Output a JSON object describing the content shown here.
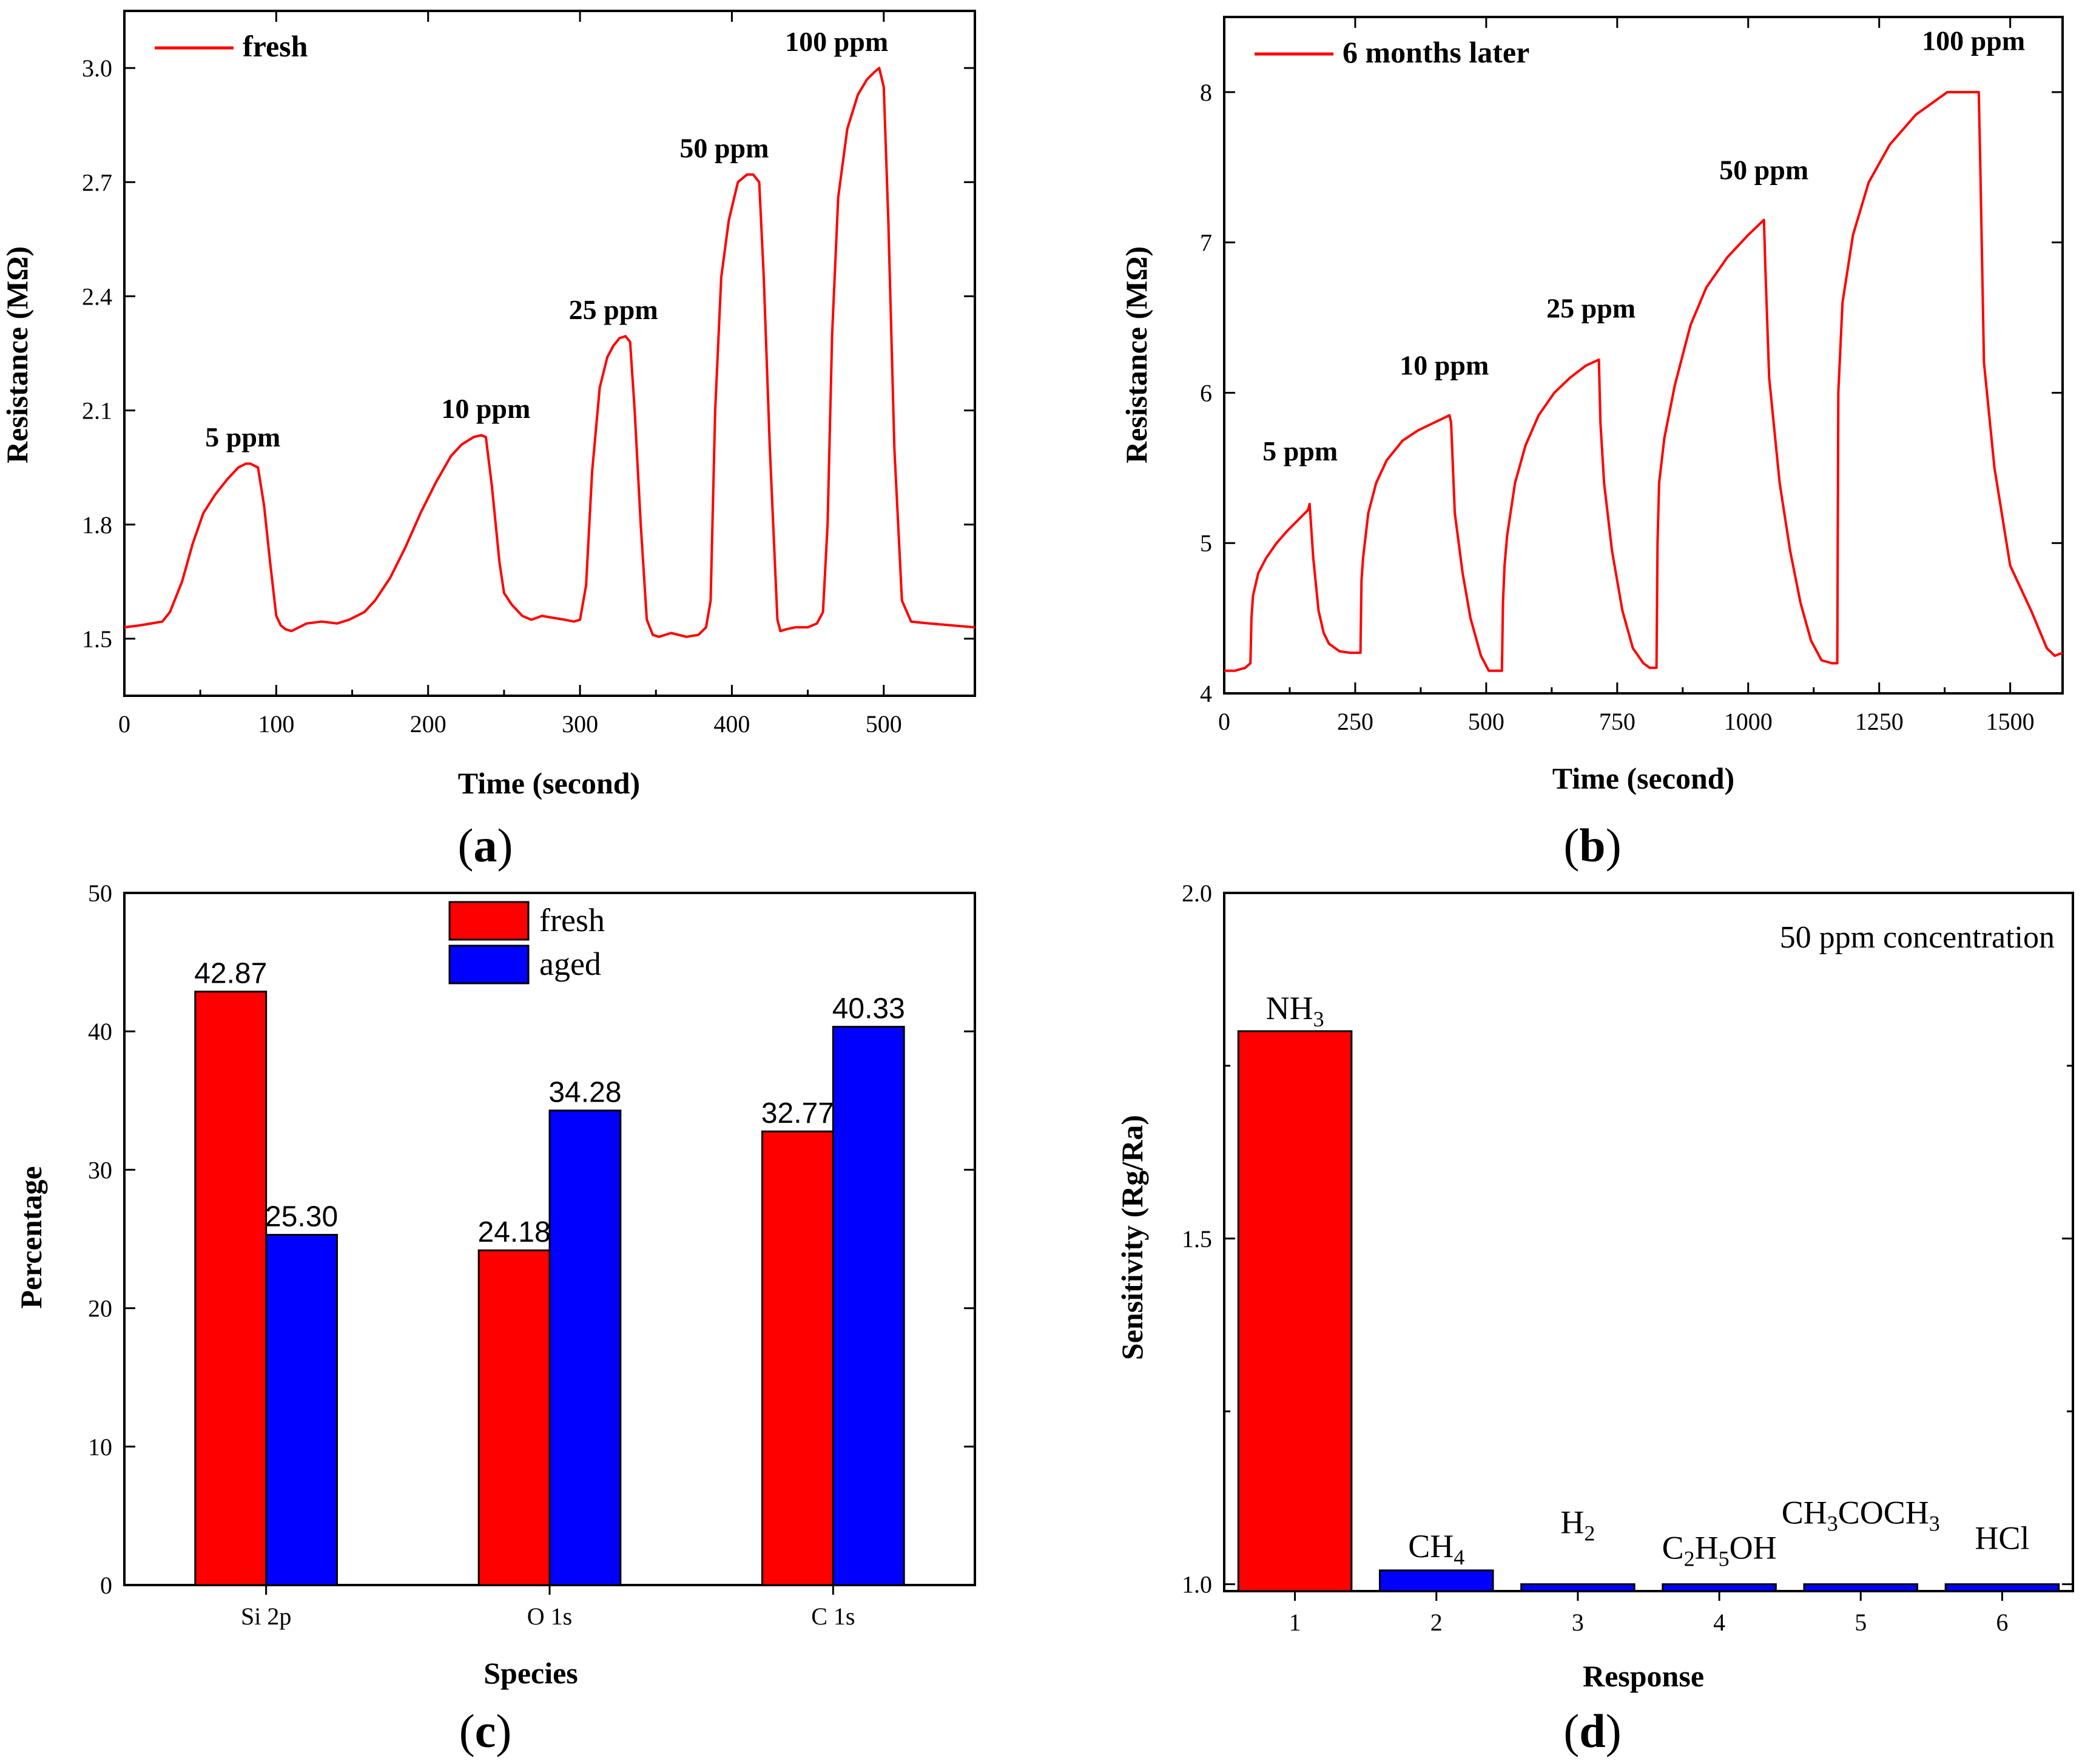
{
  "chart_data": [
    {
      "id": "a",
      "type": "line",
      "panel_label": "a",
      "xlabel": "Time (second)",
      "ylabel": "Resistance (MΩ)",
      "xlim": [
        0,
        560
      ],
      "ylim": [
        1.35,
        3.15
      ],
      "xticks": [
        0,
        100,
        200,
        300,
        400,
        500
      ],
      "yticks": [
        1.5,
        1.8,
        2.1,
        2.4,
        2.7,
        3.0
      ],
      "ytick_labels": [
        "1.5",
        "1.8",
        "2.1",
        "2.4",
        "2.7",
        "3.0"
      ],
      "legend": "top-left",
      "color": "#ff0000",
      "series": [
        {
          "name": "fresh",
          "x": [
            0,
            10,
            25,
            30,
            38,
            45,
            52,
            60,
            68,
            75,
            80,
            83,
            88,
            92,
            96,
            100,
            103,
            106,
            110,
            115,
            120,
            130,
            140,
            148,
            158,
            165,
            175,
            185,
            195,
            205,
            215,
            222,
            230,
            235,
            238,
            242,
            247,
            250,
            255,
            262,
            268,
            275,
            282,
            290,
            296,
            300,
            304,
            308,
            313,
            318,
            322,
            326,
            330,
            333,
            336,
            340,
            344,
            348,
            352,
            360,
            370,
            378,
            383,
            386,
            389,
            393,
            398,
            404,
            410,
            414,
            418,
            421,
            425,
            430,
            432,
            436,
            442,
            450,
            456,
            460,
            463,
            466,
            470,
            476,
            483,
            489,
            494,
            497,
            500,
            503,
            507,
            512,
            518,
            530,
            545,
            560
          ],
          "y": [
            1.53,
            1.535,
            1.545,
            1.57,
            1.65,
            1.75,
            1.83,
            1.88,
            1.92,
            1.95,
            1.96,
            1.96,
            1.95,
            1.85,
            1.7,
            1.56,
            1.535,
            1.525,
            1.52,
            1.53,
            1.54,
            1.545,
            1.54,
            1.55,
            1.57,
            1.6,
            1.66,
            1.74,
            1.83,
            1.91,
            1.98,
            2.01,
            2.03,
            2.035,
            2.03,
            1.9,
            1.7,
            1.62,
            1.59,
            1.56,
            1.55,
            1.56,
            1.555,
            1.55,
            1.545,
            1.55,
            1.64,
            1.94,
            2.16,
            2.24,
            2.27,
            2.29,
            2.295,
            2.28,
            2.1,
            1.8,
            1.55,
            1.51,
            1.505,
            1.515,
            1.505,
            1.51,
            1.53,
            1.6,
            2.1,
            2.45,
            2.6,
            2.7,
            2.72,
            2.72,
            2.7,
            2.45,
            2.0,
            1.55,
            1.52,
            1.525,
            1.53,
            1.53,
            1.54,
            1.57,
            1.8,
            2.3,
            2.66,
            2.84,
            2.93,
            2.97,
            2.99,
            3.0,
            2.95,
            2.6,
            2.0,
            1.6,
            1.545,
            1.54,
            1.535,
            1.53
          ]
        }
      ],
      "annotations": [
        {
          "text": "5 ppm",
          "x": 78,
          "y": 2.005
        },
        {
          "text": "10 ppm",
          "x": 238,
          "y": 2.08
        },
        {
          "text": "25 ppm",
          "x": 322,
          "y": 2.34
        },
        {
          "text": "50 ppm",
          "x": 395,
          "y": 2.765
        },
        {
          "text": "100 ppm",
          "x": 469,
          "y": 3.045
        }
      ]
    },
    {
      "id": "b",
      "type": "line",
      "panel_label": "b",
      "xlabel": "Time (second)",
      "ylabel": "Resistance (MΩ)",
      "xlim": [
        0,
        1600
      ],
      "ylim": [
        4.0,
        8.5
      ],
      "xticks": [
        0,
        250,
        500,
        750,
        1000,
        1250,
        1500
      ],
      "yticks": [
        4,
        5,
        6,
        7,
        8
      ],
      "ytick_labels": [
        "4",
        "5",
        "6",
        "7",
        "8"
      ],
      "legend": "top-left",
      "color": "#ff0000",
      "series": [
        {
          "name": "6 months later",
          "x": [
            0,
            20,
            40,
            50,
            52,
            55,
            65,
            80,
            100,
            120,
            140,
            160,
            163,
            170,
            180,
            190,
            200,
            220,
            240,
            260,
            262,
            265,
            275,
            290,
            310,
            340,
            370,
            400,
            430,
            433,
            440,
            455,
            470,
            490,
            505,
            515,
            530,
            532,
            535,
            540,
            555,
            575,
            600,
            630,
            660,
            690,
            715,
            718,
            725,
            740,
            760,
            780,
            800,
            812,
            825,
            827,
            830,
            840,
            860,
            890,
            920,
            960,
            1000,
            1030,
            1033,
            1040,
            1060,
            1080,
            1100,
            1120,
            1140,
            1160,
            1170,
            1172,
            1180,
            1200,
            1230,
            1270,
            1320,
            1380,
            1440,
            1443,
            1450,
            1470,
            1500,
            1540,
            1570,
            1585,
            1600
          ],
          "y": [
            4.15,
            4.15,
            4.17,
            4.2,
            4.5,
            4.65,
            4.8,
            4.9,
            5.0,
            5.08,
            5.15,
            5.22,
            5.26,
            4.9,
            4.55,
            4.4,
            4.33,
            4.28,
            4.27,
            4.27,
            4.75,
            4.9,
            5.2,
            5.4,
            5.55,
            5.68,
            5.75,
            5.8,
            5.85,
            5.8,
            5.2,
            4.8,
            4.5,
            4.25,
            4.15,
            4.15,
            4.15,
            4.6,
            4.85,
            5.05,
            5.4,
            5.65,
            5.85,
            6.0,
            6.1,
            6.18,
            6.22,
            5.8,
            5.4,
            4.95,
            4.55,
            4.3,
            4.2,
            4.17,
            4.17,
            5.0,
            5.4,
            5.7,
            6.05,
            6.45,
            6.7,
            6.9,
            7.05,
            7.15,
            6.8,
            6.1,
            5.4,
            4.95,
            4.6,
            4.35,
            4.22,
            4.2,
            4.2,
            6.0,
            6.6,
            7.05,
            7.4,
            7.65,
            7.85,
            8.0,
            8.0,
            7.5,
            6.2,
            5.5,
            4.85,
            4.55,
            4.3,
            4.25,
            4.27
          ]
        }
      ],
      "annotations": [
        {
          "text": "5 ppm",
          "x": 145,
          "y": 5.55
        },
        {
          "text": "10 ppm",
          "x": 420,
          "y": 6.12
        },
        {
          "text": "25 ppm",
          "x": 700,
          "y": 6.5
        },
        {
          "text": "50 ppm",
          "x": 1030,
          "y": 7.42
        },
        {
          "text": "100 ppm",
          "x": 1430,
          "y": 8.28
        }
      ]
    },
    {
      "id": "c",
      "type": "bar",
      "panel_label": "c",
      "xlabel": "Species",
      "ylabel": "Percentage",
      "ylim": [
        0,
        50
      ],
      "yticks": [
        0,
        10,
        20,
        30,
        40,
        50
      ],
      "categories": [
        "Si 2p",
        "O 1s",
        "C 1s"
      ],
      "legend": "top-center",
      "series": [
        {
          "name": "fresh",
          "color": "#ff0000",
          "values": [
            42.87,
            24.18,
            32.77
          ],
          "labels": [
            "42.87",
            "24.18",
            "32.77"
          ]
        },
        {
          "name": "aged",
          "color": "#0000ff",
          "values": [
            25.3,
            34.28,
            40.33
          ],
          "labels": [
            "25.30",
            "34.28",
            "40.33"
          ]
        }
      ]
    },
    {
      "id": "d",
      "type": "bar",
      "panel_label": "d",
      "xlabel": "Response",
      "ylabel": "Sensitivity (Rg/Ra)",
      "ylim": [
        0.99,
        2.0
      ],
      "yticks": [
        1.0,
        1.5,
        2.0
      ],
      "ytick_labels": [
        "1.0",
        "1.5",
        "2.0"
      ],
      "categories": [
        "1",
        "2",
        "3",
        "4",
        "5",
        "6"
      ],
      "values": [
        1.8,
        1.02,
        1.0,
        1.0,
        1.0,
        1.0
      ],
      "colors": [
        "#ff0000",
        "#0000ff",
        "#0000ff",
        "#0000ff",
        "#0000ff",
        "#0000ff"
      ],
      "bar_labels": [
        {
          "text": "NH",
          "sub": "3"
        },
        {
          "text": "CH",
          "sub": "4"
        },
        {
          "text": "H",
          "sub": "2"
        },
        {
          "parts": [
            "C",
            "2",
            "H",
            "5",
            "OH"
          ]
        },
        {
          "parts": [
            "CH",
            "3",
            "COCH",
            "3"
          ]
        },
        {
          "text": "HCl",
          "sub": ""
        }
      ],
      "annotation": "50 ppm concentration"
    }
  ]
}
